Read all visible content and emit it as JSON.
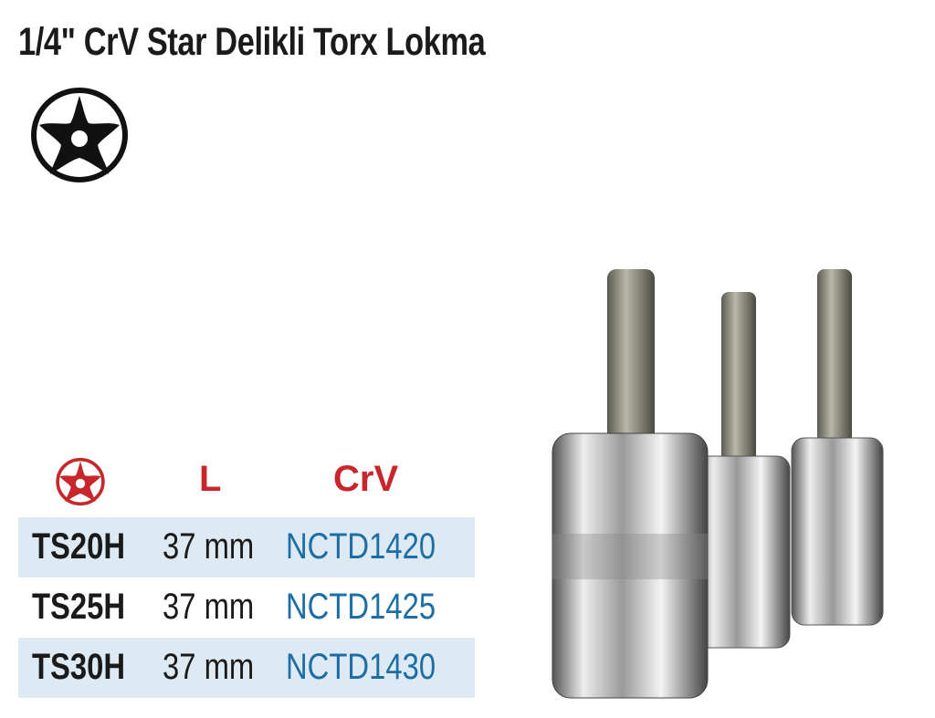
{
  "title": "1/4\" CrV Star Delikli Torx Lokma",
  "icons": {
    "main": "torx-star-icon",
    "header": "torx-star-icon"
  },
  "colors": {
    "header_red": "#c8262a",
    "code_blue": "#1d6ea4",
    "row_shade": "#dde9f3"
  },
  "table": {
    "headers": {
      "length": "L",
      "material": "CrV"
    },
    "rows": [
      {
        "size": "TS20H",
        "length": "37 mm",
        "code": "NCTD1420"
      },
      {
        "size": "TS25H",
        "length": "37 mm",
        "code": "NCTD1425"
      },
      {
        "size": "TS30H",
        "length": "37 mm",
        "code": "NCTD1430"
      }
    ]
  }
}
